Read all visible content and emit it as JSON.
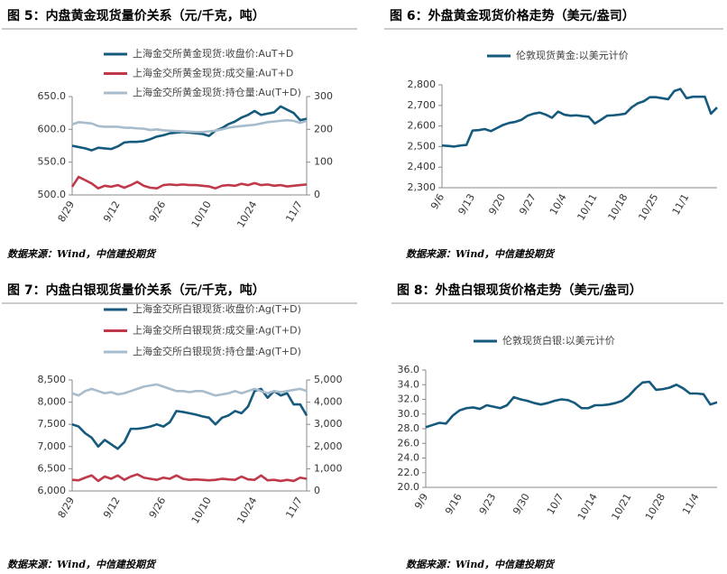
{
  "chart_data": [
    {
      "type": "line",
      "title": "图 5：内盘黄金现货量价关系（元/千克，吨）",
      "source": "数据来源：Wind，中信建投期货",
      "categories": [
        "8/29",
        null,
        null,
        null,
        null,
        null,
        null,
        "9/12",
        null,
        null,
        null,
        null,
        null,
        null,
        "9/26",
        null,
        null,
        null,
        null,
        null,
        null,
        "10/10",
        null,
        null,
        null,
        null,
        null,
        null,
        "10/24",
        null,
        null,
        null,
        null,
        null,
        null,
        "11/7",
        null
      ],
      "ylim": [
        500,
        650
      ],
      "yticks": [
        {
          "value": 500,
          "label": "500.0"
        },
        {
          "value": 550,
          "label": "550.0"
        },
        {
          "value": 600,
          "label": "600.0"
        },
        {
          "value": 650,
          "label": "650.0"
        }
      ],
      "y2lim": [
        0,
        300
      ],
      "y2ticks": [
        0,
        100,
        200,
        300
      ],
      "series": [
        {
          "name": "上海金交所黄金现货:收盘价:AuT+D",
          "color": "#155a7c",
          "values": [
            575,
            573,
            571,
            568,
            572,
            571,
            570,
            574,
            580,
            581,
            581,
            582,
            585,
            589,
            591,
            594,
            595,
            596,
            595,
            594,
            593,
            590,
            598,
            602,
            608,
            612,
            618,
            622,
            628,
            622,
            624,
            626,
            635,
            630,
            625,
            614,
            616
          ]
        },
        {
          "name": "上海金交所黄金现货:成交量:AuT+D",
          "color": "#c0394b",
          "axis": "y2",
          "values": [
            25,
            55,
            45,
            35,
            20,
            28,
            25,
            30,
            22,
            30,
            40,
            28,
            22,
            20,
            30,
            32,
            30,
            32,
            30,
            30,
            28,
            26,
            20,
            28,
            30,
            28,
            34,
            30,
            36,
            30,
            32,
            28,
            30,
            26,
            28,
            30,
            32
          ]
        },
        {
          "name": "上海金交所黄金现货:持仓量:Au(T+D)",
          "color": "#a7bccc",
          "axis": "y2",
          "values": [
            215,
            222,
            220,
            218,
            210,
            208,
            208,
            208,
            205,
            205,
            203,
            202,
            198,
            200,
            197,
            196,
            195,
            194,
            193,
            192,
            192,
            194,
            196,
            200,
            205,
            208,
            210,
            212,
            214,
            218,
            222,
            224,
            226,
            228,
            226,
            220,
            226
          ]
        }
      ]
    },
    {
      "type": "line",
      "title": "图 6：外盘黄金现货价格走势（美元/盎司）",
      "source": "数据来源：Wind，中信建投期货",
      "categories": [
        "9/6",
        null,
        null,
        null,
        null,
        "9/13",
        null,
        null,
        null,
        null,
        "9/20",
        null,
        null,
        null,
        null,
        "9/27",
        null,
        null,
        null,
        null,
        "10/4",
        null,
        null,
        null,
        null,
        "10/11",
        null,
        null,
        null,
        null,
        "10/18",
        null,
        null,
        null,
        null,
        "10/25",
        null,
        null,
        null,
        null,
        "11/1",
        null,
        null,
        null,
        null,
        null
      ],
      "ylim": [
        2300,
        2800
      ],
      "yticks": [
        {
          "value": 2300,
          "label": "2,300"
        },
        {
          "value": 2400,
          "label": "2,400"
        },
        {
          "value": 2500,
          "label": "2,500"
        },
        {
          "value": 2600,
          "label": "2,600"
        },
        {
          "value": 2700,
          "label": "2,700"
        },
        {
          "value": 2800,
          "label": "2,800"
        }
      ],
      "series": [
        {
          "name": "伦敦现货黄金:以美元计价",
          "color": "#155a7c",
          "values": [
            2505,
            2503,
            2500,
            2505,
            2508,
            2578,
            2580,
            2585,
            2575,
            2590,
            2605,
            2615,
            2620,
            2630,
            2650,
            2660,
            2665,
            2655,
            2640,
            2670,
            2655,
            2650,
            2652,
            2648,
            2645,
            2612,
            2630,
            2650,
            2652,
            2655,
            2660,
            2690,
            2710,
            2720,
            2740,
            2740,
            2735,
            2730,
            2770,
            2780,
            2735,
            2742,
            2742,
            2742,
            2660,
            2690
          ]
        }
      ]
    },
    {
      "type": "line",
      "title": "图 7：内盘白银现货量价关系（元/千克，吨）",
      "source": "数据来源：Wind，中信建投期货",
      "categories": [
        "8/29",
        null,
        null,
        null,
        null,
        null,
        null,
        "9/12",
        null,
        null,
        null,
        null,
        null,
        null,
        "9/26",
        null,
        null,
        null,
        null,
        null,
        null,
        "10/10",
        null,
        null,
        null,
        null,
        null,
        null,
        "10/24",
        null,
        null,
        null,
        null,
        null,
        null,
        "11/7",
        null
      ],
      "ylim": [
        6000,
        8500
      ],
      "yticks": [
        {
          "value": 6000,
          "label": "6,000"
        },
        {
          "value": 6500,
          "label": "6,500"
        },
        {
          "value": 7000,
          "label": "7,000"
        },
        {
          "value": 7500,
          "label": "7,500"
        },
        {
          "value": 8000,
          "label": "8,000"
        },
        {
          "value": 8500,
          "label": "8,500"
        }
      ],
      "y2lim": [
        0,
        5000
      ],
      "y2ticks": [
        0,
        {
          "value": 1000,
          "label": "1,000"
        },
        {
          "value": 2000,
          "label": "2,000"
        },
        {
          "value": 3000,
          "label": "3,000"
        },
        {
          "value": 4000,
          "label": "4,000"
        },
        {
          "value": 5000,
          "label": "5,000"
        }
      ],
      "series": [
        {
          "name": "上海金交所白银现货:收盘价:Ag(T+D)",
          "color": "#155a7c",
          "values": [
            7500,
            7450,
            7300,
            7200,
            7000,
            7150,
            7050,
            6950,
            7100,
            7400,
            7400,
            7420,
            7450,
            7500,
            7450,
            7550,
            7800,
            7780,
            7750,
            7720,
            7680,
            7650,
            7500,
            7650,
            7700,
            7800,
            7750,
            7900,
            8250,
            8300,
            8100,
            8250,
            8150,
            8200,
            7950,
            7950,
            7700
          ]
        },
        {
          "name": "上海金交所白银现货:成交量:Ag(T+D)",
          "color": "#c0394b",
          "axis": "y2",
          "values": [
            500,
            480,
            600,
            700,
            450,
            650,
            550,
            700,
            500,
            650,
            750,
            600,
            550,
            500,
            600,
            550,
            700,
            550,
            500,
            520,
            500,
            480,
            500,
            550,
            520,
            500,
            650,
            520,
            500,
            700,
            480,
            500,
            450,
            500,
            450,
            600,
            550
          ]
        },
        {
          "name": "上海金交所白银现货:持仓量:Ag(T+D)",
          "color": "#a7bccc",
          "axis": "y2",
          "values": [
            4400,
            4300,
            4500,
            4600,
            4500,
            4400,
            4450,
            4350,
            4400,
            4500,
            4600,
            4700,
            4750,
            4800,
            4700,
            4600,
            4500,
            4500,
            4450,
            4500,
            4500,
            4400,
            4300,
            4350,
            4400,
            4500,
            4400,
            4500,
            4600,
            4500,
            4400,
            4500,
            4450,
            4500,
            4550,
            4600,
            4500
          ]
        }
      ]
    },
    {
      "type": "line",
      "title": "图 8：外盘白银现货价格走势（美元/盎司）",
      "source": "数据来源：Wind，中信建投期货",
      "categories": [
        "9/9",
        null,
        null,
        null,
        null,
        "9/16",
        null,
        null,
        null,
        null,
        "9/23",
        null,
        null,
        null,
        null,
        "9/30",
        null,
        null,
        null,
        null,
        "10/7",
        null,
        null,
        null,
        null,
        "10/14",
        null,
        null,
        null,
        null,
        "10/21",
        null,
        null,
        null,
        null,
        "10/28",
        null,
        null,
        null,
        null,
        "11/4",
        null,
        null,
        null
      ],
      "ylim": [
        20,
        36
      ],
      "yticks": [
        {
          "value": 20,
          "label": "20.0"
        },
        {
          "value": 22,
          "label": "22.0"
        },
        {
          "value": 24,
          "label": "24.0"
        },
        {
          "value": 26,
          "label": "26.0"
        },
        {
          "value": 28,
          "label": "28.0"
        },
        {
          "value": 30,
          "label": "30.0"
        },
        {
          "value": 32,
          "label": "32.0"
        },
        {
          "value": 34,
          "label": "34.0"
        },
        {
          "value": 36,
          "label": "36.0"
        }
      ],
      "series": [
        {
          "name": "伦敦现货白银:以美元计价",
          "color": "#155a7c",
          "values": [
            28.2,
            28.5,
            28.8,
            28.7,
            29.8,
            30.5,
            30.8,
            30.9,
            30.7,
            31.2,
            31.0,
            30.8,
            31.2,
            32.3,
            32.0,
            31.8,
            31.5,
            31.3,
            31.5,
            31.8,
            32.0,
            31.9,
            31.5,
            30.8,
            30.8,
            31.2,
            31.2,
            31.3,
            31.5,
            31.8,
            32.5,
            33.5,
            34.3,
            34.4,
            33.3,
            33.4,
            33.6,
            34.0,
            33.5,
            32.8,
            32.8,
            32.7,
            31.3,
            31.6
          ]
        }
      ]
    }
  ]
}
